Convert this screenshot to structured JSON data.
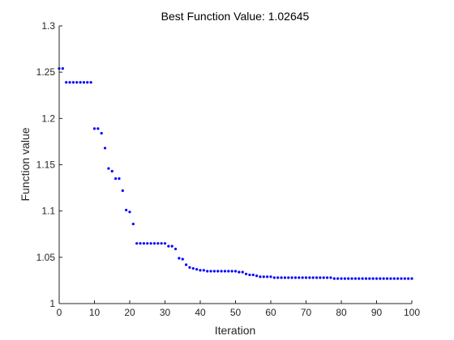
{
  "chart_data": {
    "type": "scatter",
    "title": "Best Function Value: 1.02645",
    "xlabel": "Iteration",
    "ylabel": "Function value",
    "xlim": [
      0,
      100
    ],
    "ylim": [
      1,
      1.3
    ],
    "xticks": [
      0,
      10,
      20,
      30,
      40,
      50,
      60,
      70,
      80,
      90,
      100
    ],
    "xtick_labels": [
      "0",
      "10",
      "20",
      "30",
      "40",
      "50",
      "60",
      "70",
      "80",
      "90",
      "100"
    ],
    "yticks": [
      1,
      1.05,
      1.1,
      1.15,
      1.2,
      1.25,
      1.3
    ],
    "ytick_labels": [
      "1",
      "1.05",
      "1.1",
      "1.15",
      "1.2",
      "1.25",
      "1.3"
    ],
    "grid": false,
    "marker_color": "#0000ff",
    "series": [
      {
        "x": [
          0,
          1,
          2,
          3,
          4,
          5,
          6,
          7,
          8,
          9,
          10,
          11,
          12,
          13,
          14,
          15,
          16,
          17,
          18,
          19,
          20,
          21,
          22,
          23,
          24,
          25,
          26,
          27,
          28,
          29,
          30,
          31,
          32,
          33,
          34,
          35,
          36,
          37,
          38,
          39,
          40,
          41,
          42,
          43,
          44,
          45,
          46,
          47,
          48,
          49,
          50,
          51,
          52,
          53,
          54,
          55,
          56,
          57,
          58,
          59,
          60,
          61,
          62,
          63,
          64,
          65,
          66,
          67,
          68,
          69,
          70,
          71,
          72,
          73,
          74,
          75,
          76,
          77,
          78,
          79,
          80,
          81,
          82,
          83,
          84,
          85,
          86,
          87,
          88,
          89,
          90,
          91,
          92,
          93,
          94,
          95,
          96,
          97,
          98,
          99,
          100
        ],
        "y": [
          1.254,
          1.254,
          1.239,
          1.239,
          1.239,
          1.239,
          1.239,
          1.239,
          1.239,
          1.239,
          1.189,
          1.189,
          1.184,
          1.168,
          1.146,
          1.143,
          1.135,
          1.135,
          1.122,
          1.101,
          1.099,
          1.086,
          1.065,
          1.065,
          1.065,
          1.065,
          1.065,
          1.065,
          1.065,
          1.065,
          1.065,
          1.062,
          1.062,
          1.059,
          1.049,
          1.048,
          1.042,
          1.039,
          1.038,
          1.037,
          1.036,
          1.036,
          1.035,
          1.035,
          1.035,
          1.035,
          1.035,
          1.035,
          1.035,
          1.035,
          1.035,
          1.034,
          1.034,
          1.032,
          1.031,
          1.031,
          1.03,
          1.029,
          1.029,
          1.029,
          1.029,
          1.028,
          1.028,
          1.028,
          1.028,
          1.028,
          1.028,
          1.028,
          1.028,
          1.028,
          1.028,
          1.028,
          1.028,
          1.028,
          1.028,
          1.028,
          1.028,
          1.028,
          1.027,
          1.027,
          1.027,
          1.027,
          1.027,
          1.027,
          1.027,
          1.027,
          1.027,
          1.027,
          1.027,
          1.027,
          1.027,
          1.027,
          1.027,
          1.027,
          1.027,
          1.027,
          1.027,
          1.027,
          1.027,
          1.027,
          1.027
        ]
      }
    ]
  }
}
